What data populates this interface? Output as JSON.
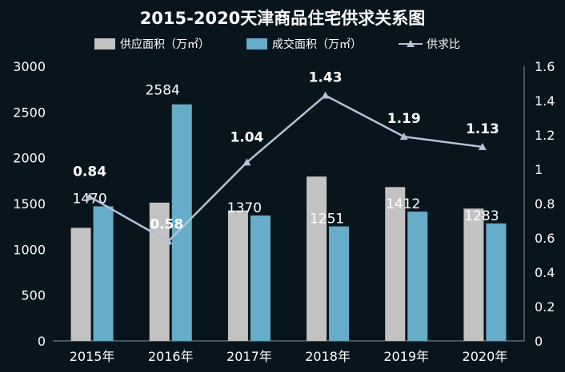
{
  "chart_data": {
    "type": "bar",
    "title": "2015-2020天津商品住宅供求关系图",
    "categories": [
      "2015年",
      "2016年",
      "2017年",
      "2018年",
      "2019年",
      "2020年"
    ],
    "series": [
      {
        "name": "供应面积（万㎡）",
        "type": "bar",
        "axis": "left",
        "color": "#c2c2c2",
        "values": [
          1235,
          1510,
          1425,
          1795,
          1680,
          1445
        ],
        "labels": [
          "",
          "",
          "",
          "",
          "",
          ""
        ]
      },
      {
        "name": "成交面积（万㎡）",
        "type": "bar",
        "axis": "left",
        "color": "#66adc9",
        "values": [
          1470,
          2584,
          1370,
          1251,
          1412,
          1283
        ],
        "labels": [
          "1470",
          "2584",
          "1370",
          "1251",
          "1412",
          "1283"
        ]
      },
      {
        "name": "供求比",
        "type": "line",
        "axis": "right",
        "color": "#b4c2d6",
        "values": [
          0.84,
          0.58,
          1.04,
          1.43,
          1.19,
          1.13
        ],
        "labels": [
          "0.84",
          "0.58",
          "1.04",
          "1.43",
          "1.19",
          "1.13"
        ]
      }
    ],
    "y_left": {
      "range": [
        0,
        3000
      ],
      "ticks": [
        "0",
        "500",
        "1000",
        "1500",
        "2000",
        "2500",
        "3000"
      ]
    },
    "y_right": {
      "range": [
        0,
        1.6
      ],
      "ticks": [
        "0",
        "0.2",
        "0.4",
        "0.6",
        "0.8",
        "1",
        "1.2",
        "1.4",
        "1.6"
      ]
    },
    "legend_position": "top",
    "grid": false,
    "colors": {
      "background": "#08151d",
      "text": "#ffffff",
      "axis": "#8a959c"
    }
  }
}
